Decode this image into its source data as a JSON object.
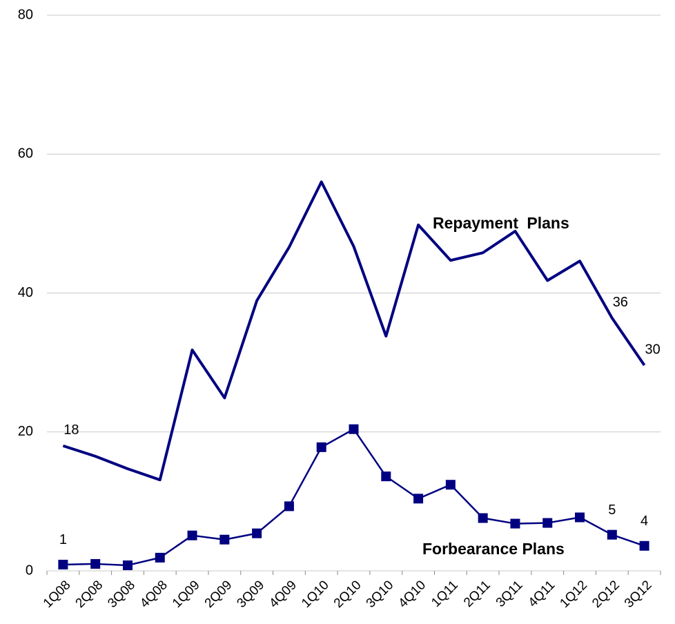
{
  "chart_data": {
    "type": "line",
    "categories": [
      "1Q08",
      "2Q08",
      "3Q08",
      "4Q08",
      "1Q09",
      "2Q09",
      "3Q09",
      "4Q09",
      "1Q10",
      "2Q10",
      "3Q10",
      "4Q10",
      "1Q11",
      "2Q11",
      "3Q11",
      "4Q11",
      "1Q12",
      "2Q12",
      "3Q12"
    ],
    "series": [
      {
        "name": "Repayment Plans",
        "color": "#000080",
        "marker": null,
        "values": [
          18.0,
          16.5,
          14.7,
          13.1,
          31.8,
          24.9,
          38.9,
          46.6,
          56.0,
          46.7,
          33.8,
          49.8,
          44.7,
          45.8,
          48.9,
          41.8,
          44.6,
          36.4,
          29.6
        ],
        "value_labels": [
          "18",
          null,
          null,
          null,
          null,
          null,
          null,
          null,
          null,
          null,
          null,
          null,
          null,
          null,
          null,
          null,
          null,
          "36",
          "30"
        ]
      },
      {
        "name": "Forbearance Plans",
        "color": "#000080",
        "marker": "square",
        "values": [
          0.9,
          1.0,
          0.8,
          1.9,
          5.1,
          4.5,
          5.4,
          9.3,
          17.8,
          20.4,
          13.6,
          10.4,
          12.4,
          7.6,
          6.8,
          6.9,
          7.7,
          5.2,
          3.6
        ],
        "value_labels": [
          "1",
          null,
          null,
          null,
          null,
          null,
          null,
          null,
          null,
          null,
          null,
          null,
          null,
          null,
          null,
          null,
          null,
          "5",
          "4"
        ]
      }
    ],
    "ylim": [
      0,
      80
    ],
    "yticks": [
      0,
      20,
      40,
      60,
      80
    ],
    "grid": true
  }
}
